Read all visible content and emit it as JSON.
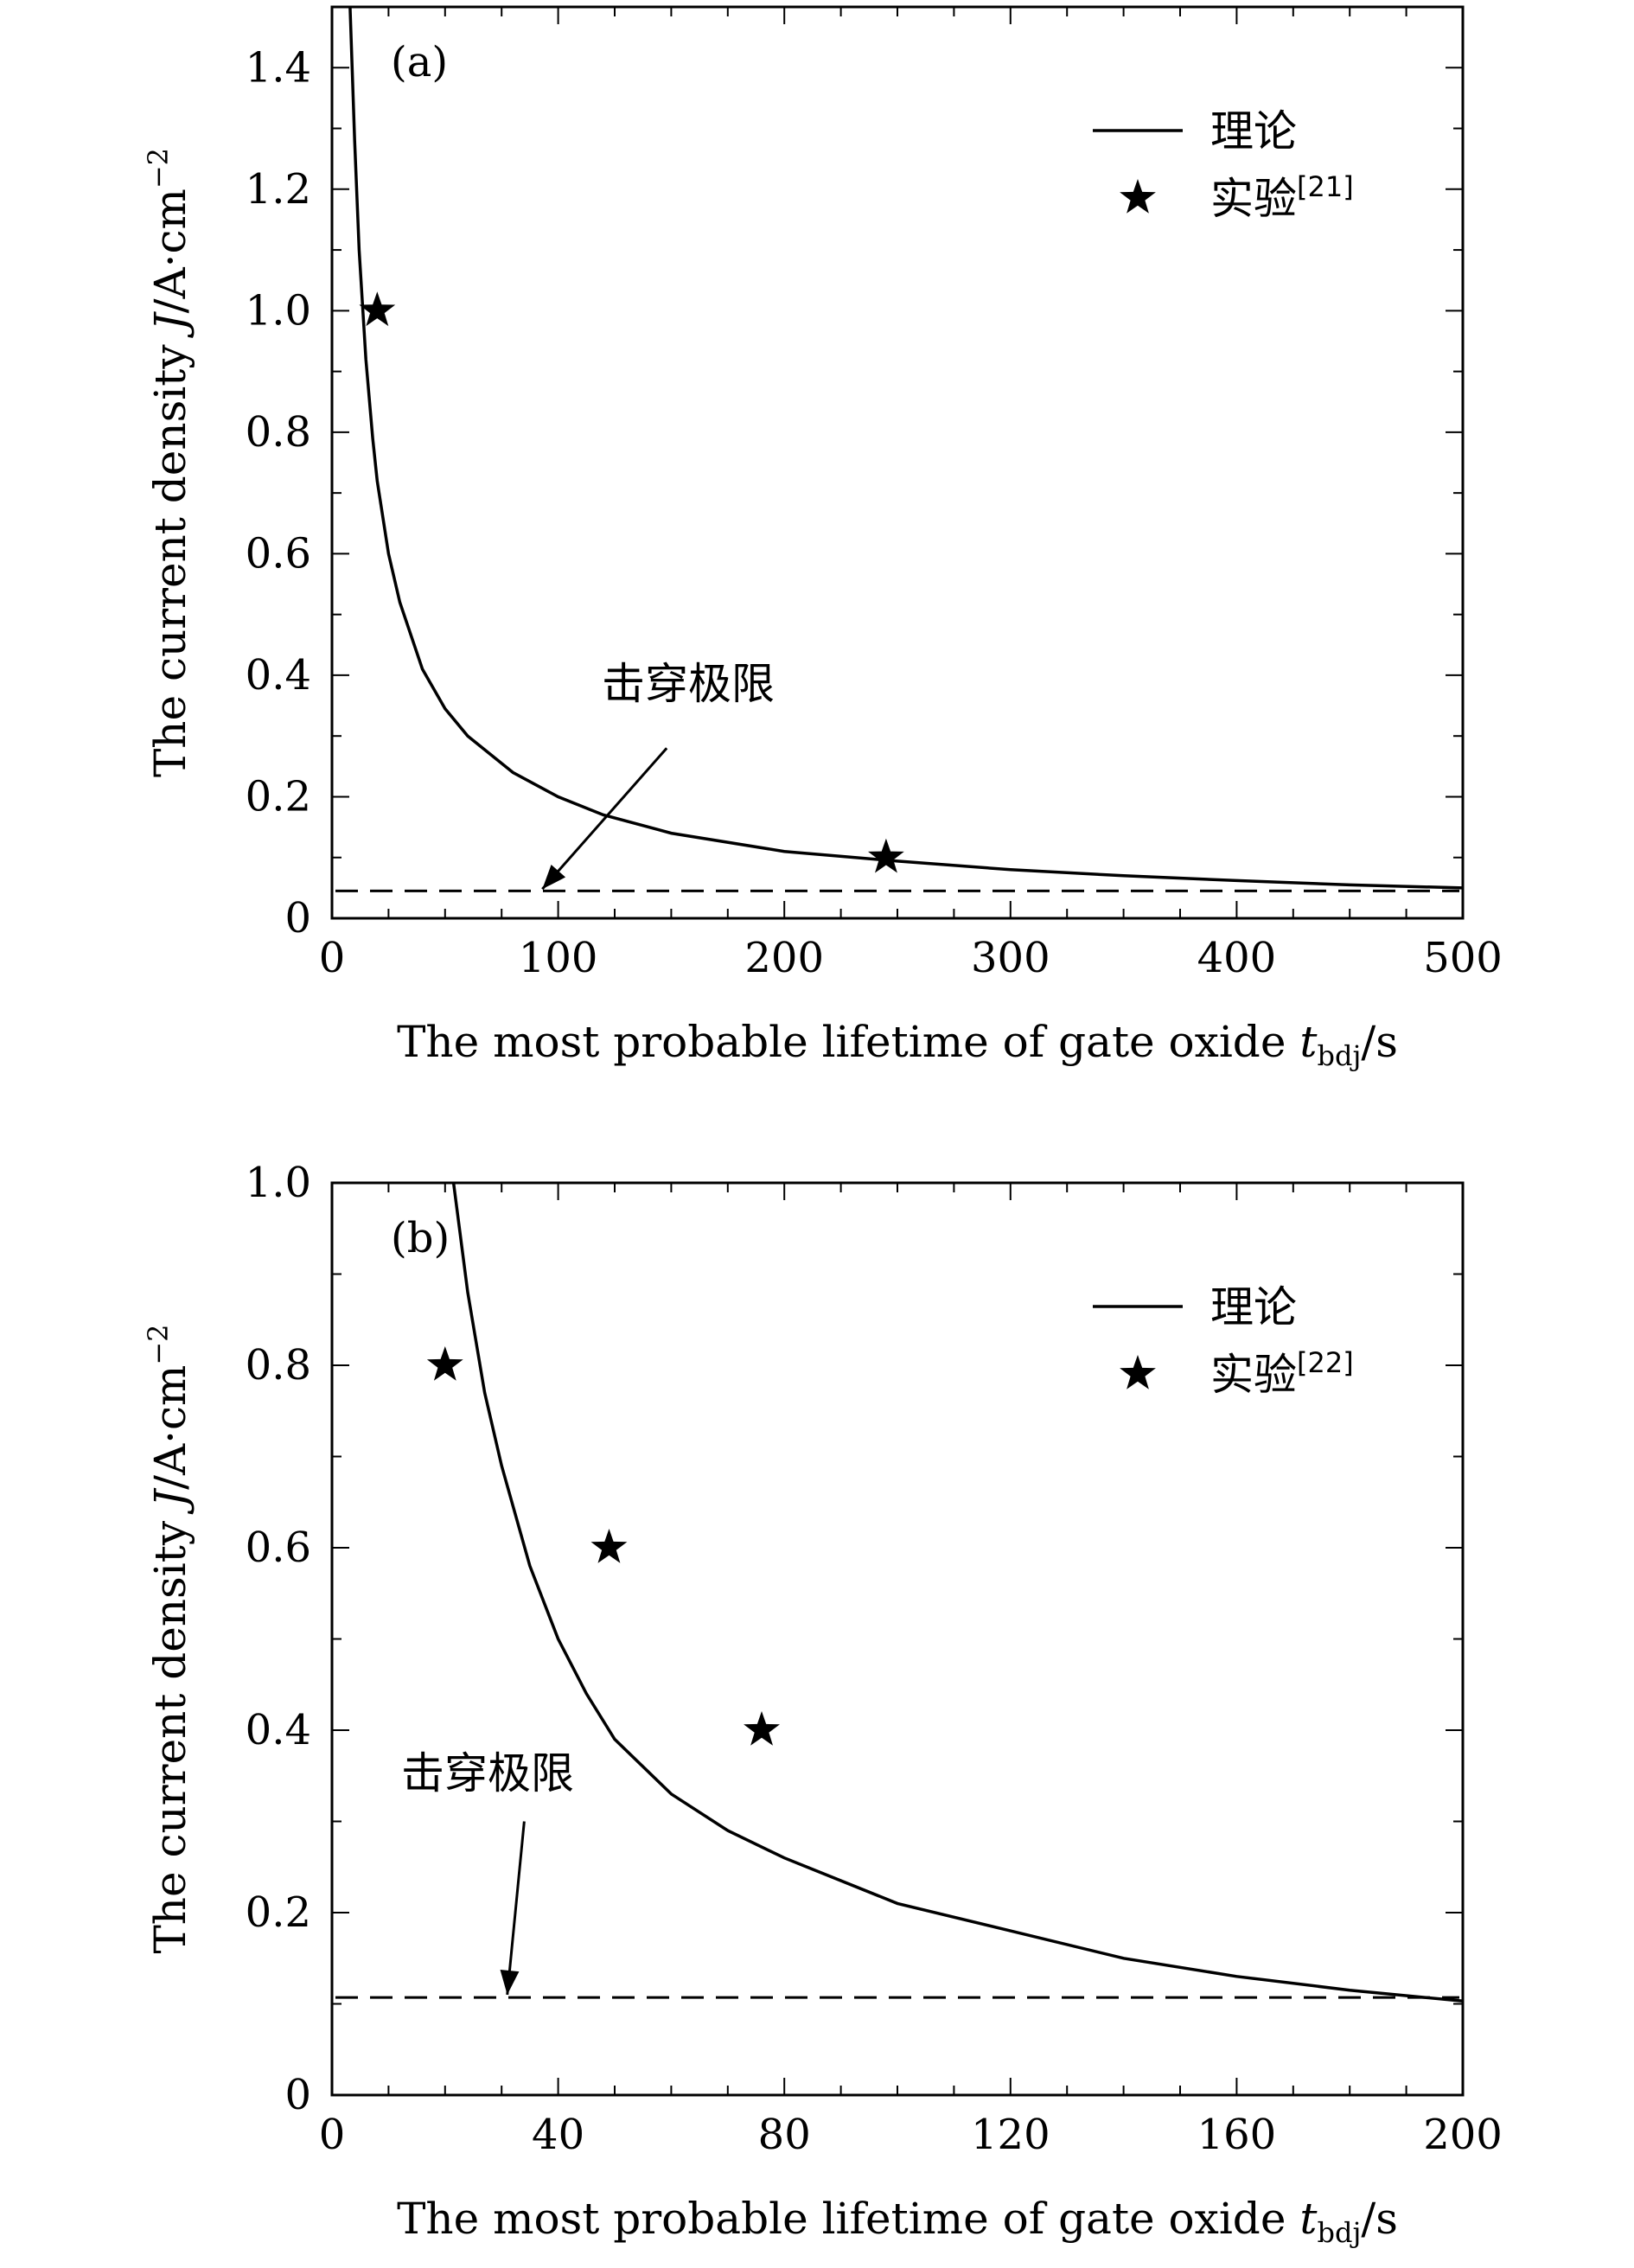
{
  "chart_data": [
    {
      "type": "line",
      "panel_label": "(a)",
      "xlabel": "The most probable lifetime of gate oxide",
      "xlabel_var": "t",
      "xlabel_sub": "bdj",
      "xlabel_unit": "/s",
      "ylabel": "The current density",
      "ylabel_var": "J",
      "ylabel_unit": "/A·cm",
      "ylabel_sup": "−2",
      "xlim": [
        0,
        500
      ],
      "ylim": [
        0,
        1.5
      ],
      "xticks": [
        0,
        100,
        200,
        300,
        400,
        500
      ],
      "xtick_labels": [
        "0",
        "100",
        "200",
        "300",
        "400",
        "500"
      ],
      "yticks": [
        0,
        0.2,
        0.4,
        0.6,
        0.8,
        1.0,
        1.2,
        1.4
      ],
      "ytick_labels": [
        "0",
        "0.2",
        "0.4",
        "0.6",
        "0.8",
        "1.0",
        "1.2",
        "1.4"
      ],
      "series": [
        {
          "name": "理论",
          "style": "solid-line",
          "x": [
            8,
            10,
            12,
            15,
            18,
            20,
            25,
            30,
            40,
            50,
            60,
            80,
            100,
            120,
            150,
            200,
            250,
            300,
            350,
            400,
            450,
            500
          ],
          "y": [
            1.5,
            1.28,
            1.1,
            0.92,
            0.79,
            0.72,
            0.6,
            0.52,
            0.41,
            0.345,
            0.3,
            0.24,
            0.2,
            0.17,
            0.14,
            0.11,
            0.094,
            0.08,
            0.07,
            0.062,
            0.055,
            0.05
          ]
        },
        {
          "name": "实验",
          "legend_ref": "[21]",
          "style": "star-markers",
          "x": [
            20,
            245
          ],
          "y": [
            1.0,
            0.1
          ]
        }
      ],
      "breakdown_limit": {
        "y": 0.045,
        "label": "击穿极限",
        "arrow_from": [
          148,
          0.28
        ],
        "arrow_to": [
          93,
          0.048
        ]
      },
      "legend_position": "top-right"
    },
    {
      "type": "line",
      "panel_label": "(b)",
      "xlabel": "The most probable lifetime of gate oxide",
      "xlabel_var": "t",
      "xlabel_sub": "bdj",
      "xlabel_unit": "/s",
      "ylabel": "The current density",
      "ylabel_var": "J",
      "ylabel_unit": "/A·cm",
      "ylabel_sup": "−2",
      "xlim": [
        0,
        200
      ],
      "ylim": [
        0,
        1.0
      ],
      "xticks": [
        0,
        40,
        80,
        120,
        160,
        200
      ],
      "xtick_labels": [
        "0",
        "40",
        "80",
        "120",
        "160",
        "200"
      ],
      "yticks": [
        0,
        0.2,
        0.4,
        0.6,
        0.8,
        1.0
      ],
      "ytick_labels": [
        "0",
        "0.2",
        "0.4",
        "0.6",
        "0.8",
        "1.0"
      ],
      "series": [
        {
          "name": "理论",
          "style": "solid-line",
          "x": [
            21.5,
            24,
            27,
            30,
            35,
            40,
            45,
            50,
            60,
            70,
            80,
            100,
            120,
            140,
            160,
            180,
            200
          ],
          "y": [
            1.0,
            0.88,
            0.77,
            0.69,
            0.58,
            0.5,
            0.44,
            0.39,
            0.33,
            0.29,
            0.26,
            0.21,
            0.18,
            0.15,
            0.13,
            0.115,
            0.103
          ]
        },
        {
          "name": "实验",
          "legend_ref": "[22]",
          "style": "star-markers",
          "x": [
            20,
            49,
            76
          ],
          "y": [
            0.8,
            0.6,
            0.4
          ]
        }
      ],
      "breakdown_limit": {
        "y": 0.107,
        "label": "击穿极限",
        "arrow_from": [
          34,
          0.3
        ],
        "arrow_to": [
          31,
          0.11
        ]
      },
      "legend_position": "top-right"
    }
  ]
}
